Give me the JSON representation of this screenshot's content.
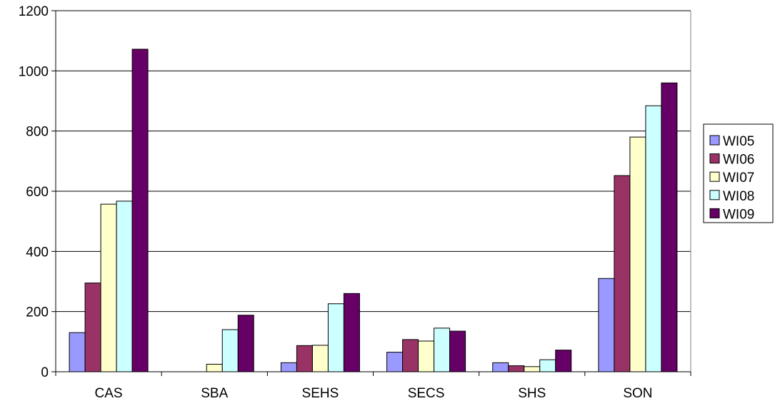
{
  "chart_data": {
    "type": "bar",
    "categories": [
      "CAS",
      "SBA",
      "SEHS",
      "SECS",
      "SHS",
      "SON"
    ],
    "series": [
      {
        "name": "WI05",
        "color": "#9999ff",
        "values": [
          130,
          0,
          30,
          65,
          30,
          310
        ]
      },
      {
        "name": "WI06",
        "color": "#993366",
        "values": [
          295,
          0,
          87,
          107,
          20,
          652
        ]
      },
      {
        "name": "WI07",
        "color": "#ffffcc",
        "values": [
          557,
          25,
          88,
          102,
          17,
          780
        ]
      },
      {
        "name": "WI08",
        "color": "#ccffff",
        "values": [
          567,
          140,
          226,
          145,
          40,
          884
        ]
      },
      {
        "name": "WI09",
        "color": "#660066",
        "values": [
          1072,
          188,
          260,
          135,
          72,
          960
        ]
      }
    ],
    "y_ticks": [
      "0",
      "200",
      "400",
      "600",
      "800",
      "1000",
      "1200"
    ],
    "ylim": [
      0,
      1200
    ],
    "grid": true,
    "legend": "right"
  }
}
